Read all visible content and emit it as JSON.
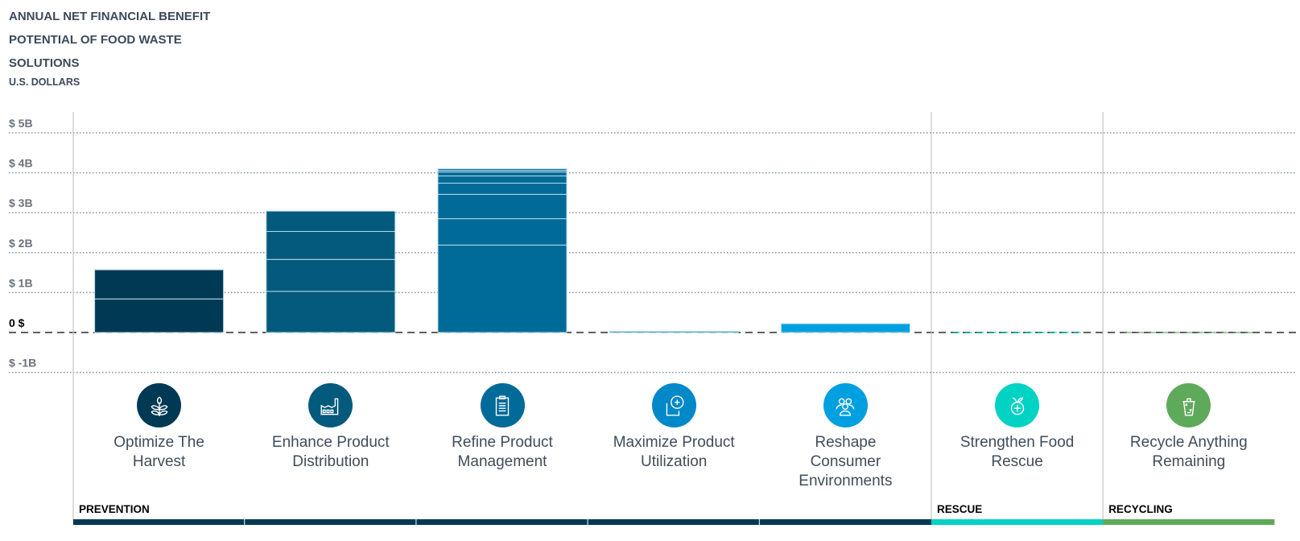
{
  "title_lines": [
    "ANNUAL NET FINANCIAL BENEFIT",
    "POTENTIAL OF FOOD WASTE",
    "SOLUTIONS"
  ],
  "subtitle": "U.S. DOLLARS",
  "chart_data": {
    "type": "bar",
    "stacked": true,
    "title": "Annual Net Financial Benefit Potential of Food Waste Solutions",
    "ylabel": "U.S. Dollars (billions)",
    "ylim": [
      -1,
      5
    ],
    "yticks": [
      {
        "value": 5,
        "label": "$ 5B"
      },
      {
        "value": 4,
        "label": "$ 4B"
      },
      {
        "value": 3,
        "label": "$ 3B"
      },
      {
        "value": 2,
        "label": "$ 2B"
      },
      {
        "value": 1,
        "label": "$ 1B"
      },
      {
        "value": 0,
        "label": "0 $"
      },
      {
        "value": -1,
        "label": "$ -1B"
      }
    ],
    "grid": true,
    "categories": [
      {
        "label": "Optimize The Harvest",
        "group": "PREVENTION",
        "color": "#003953",
        "icon": "wheat-icon",
        "segments": [
          0.84,
          0.73
        ]
      },
      {
        "label": "Enhance Product Distribution",
        "group": "PREVENTION",
        "color": "#045a7c",
        "icon": "factory-icon",
        "segments": [
          1.03,
          0.8,
          0.7,
          0.51
        ]
      },
      {
        "label": "Refine Product Management",
        "group": "PREVENTION",
        "color": "#006a98",
        "icon": "clipboard-icon",
        "segments": [
          2.19,
          0.66,
          0.61,
          0.28,
          0.18,
          0.1,
          0.04,
          0.04
        ]
      },
      {
        "label": "Maximize Product Utilization",
        "group": "PREVENTION",
        "color": "#0088c8",
        "icon": "expand-plus-icon",
        "segments": [
          0.03
        ]
      },
      {
        "label": "Reshape Consumer Environments",
        "group": "PREVENTION",
        "color": "#00a0e0",
        "icon": "people-icon",
        "segments": [
          0.22
        ]
      },
      {
        "label": "Strengthen Food Rescue",
        "group": "RESCUE",
        "color": "#00d2c3",
        "icon": "apple-plus-icon",
        "segments": [
          0.0
        ]
      },
      {
        "label": "Recycle Anything Remaining",
        "group": "RECYCLING",
        "color": "#5faa5a",
        "icon": "recycle-bin-icon",
        "segments": [
          0.0
        ]
      }
    ],
    "groups": [
      {
        "name": "PREVENTION",
        "color": "#003953",
        "span": 5
      },
      {
        "name": "RESCUE",
        "color": "#00d2c3",
        "span": 1
      },
      {
        "name": "RECYCLING",
        "color": "#5faa5a",
        "span": 1
      }
    ]
  }
}
